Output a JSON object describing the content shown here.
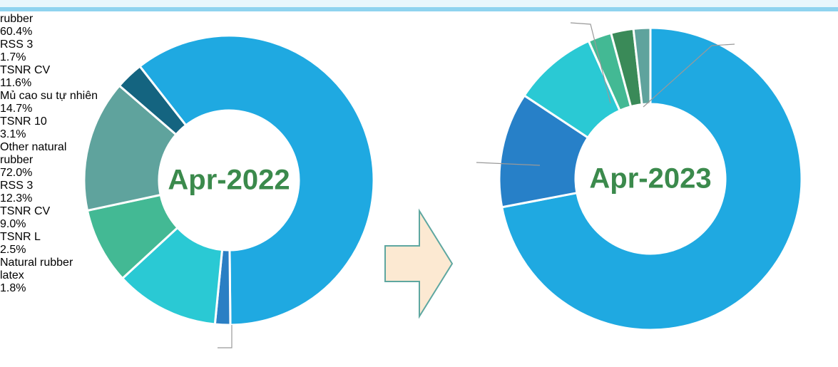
{
  "chart_data": [
    {
      "type": "pie",
      "title": "Apr-2022",
      "categories": [
        "Other natural rubber",
        "RSS 3",
        "TSNR CV",
        null,
        "Mủ cao su tự nhiên",
        "TSNR 10"
      ],
      "values": [
        60.4,
        1.7,
        11.6,
        8.5,
        14.7,
        3.1
      ],
      "value_labels": [
        "60.4%",
        "1.7%",
        "11.6%",
        null,
        "14.7%",
        "3.1%"
      ],
      "colors": [
        "#1fa9e1",
        "#2a7fc4",
        "#2ac9d4",
        "#43b994",
        "#5fa39d",
        "#146480"
      ]
    },
    {
      "type": "pie",
      "title": "Apr-2023",
      "categories": [
        "Other natural rubber",
        "RSS 3",
        "TSNR CV",
        "TSNR L",
        null,
        "Natural rubber latex"
      ],
      "values": [
        72.0,
        12.3,
        9.0,
        2.5,
        2.4,
        1.8
      ],
      "value_labels": [
        "72.0%",
        "12.3%",
        "9.0%",
        "2.5%",
        null,
        "1.8%"
      ],
      "colors": [
        "#1fa9e1",
        "#2780c8",
        "#2ac9d4",
        "#43b994",
        "#3a8a58",
        "#5fa39d"
      ]
    }
  ]
}
